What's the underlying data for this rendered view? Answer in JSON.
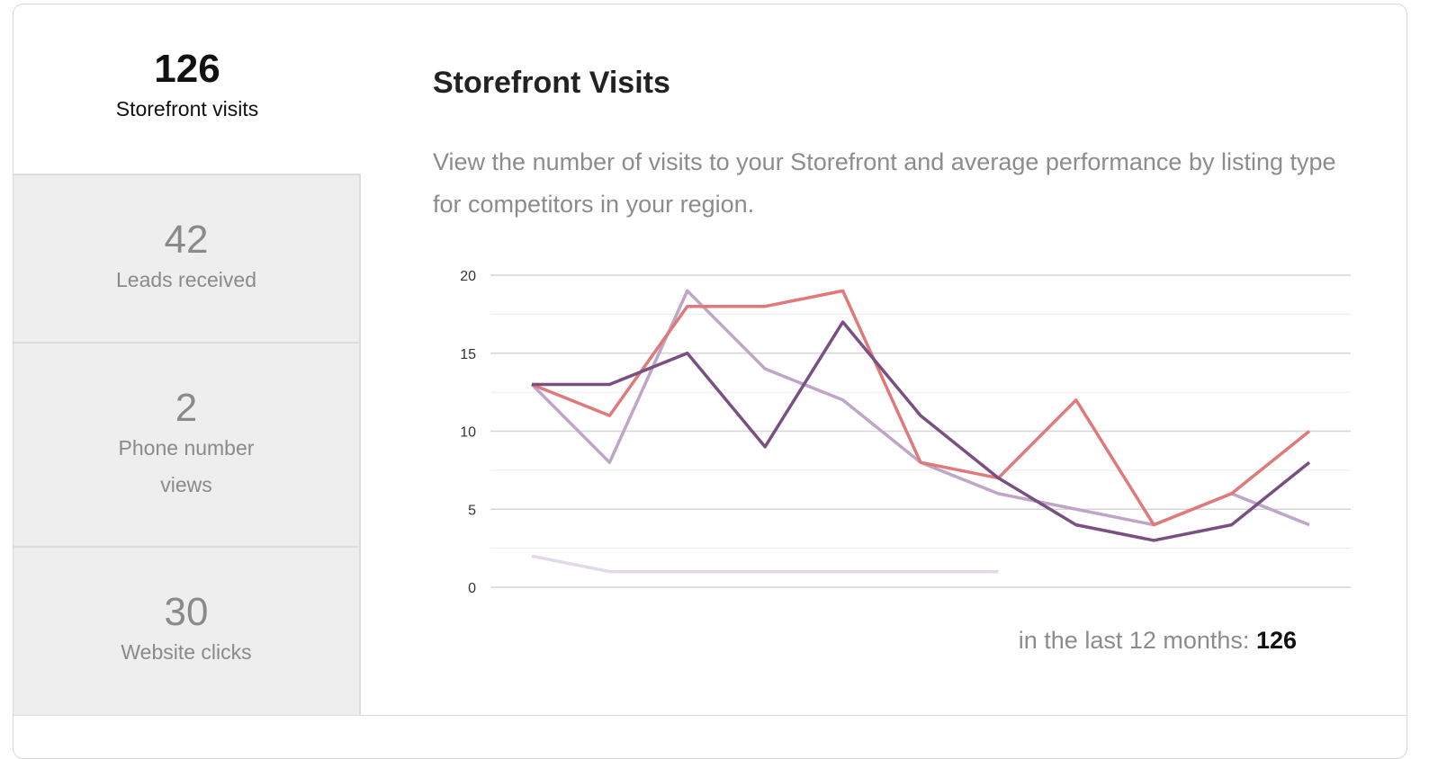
{
  "sidebar": {
    "stats": [
      {
        "value": "126",
        "label": "Storefront visits",
        "active": true
      },
      {
        "value": "42",
        "label": "Leads received",
        "active": false
      },
      {
        "value": "2",
        "label": "Phone number views",
        "active": false
      },
      {
        "value": "30",
        "label": "Website clicks",
        "active": false
      }
    ]
  },
  "main": {
    "title": "Storefront Visits",
    "description": "View the number of visits to your Storefront and average performance by listing type for competitors in your region.",
    "summary_label": "in the last 12 months:",
    "summary_value": "126"
  },
  "chart_data": {
    "type": "line",
    "title": "",
    "xlabel": "",
    "ylabel": "",
    "ylim": [
      0,
      20
    ],
    "yticks": [
      0,
      5,
      10,
      15,
      20
    ],
    "grid": true,
    "legend": "none",
    "x": [
      1,
      2,
      3,
      4,
      5,
      6,
      7,
      8,
      9,
      10,
      11
    ],
    "series": [
      {
        "color": "#e07a7a",
        "values": [
          13,
          11,
          18,
          18,
          19,
          8,
          7,
          12,
          4,
          6,
          10
        ]
      },
      {
        "color": "#bfa6c8",
        "values": [
          13,
          8,
          19,
          14,
          12,
          8,
          6,
          5,
          4,
          6,
          4
        ]
      },
      {
        "color": "#7a4f82",
        "values": [
          13,
          13,
          15,
          9,
          17,
          11,
          7,
          4,
          3,
          4,
          8
        ]
      },
      {
        "color": "#e2d8e6",
        "values": [
          2,
          1,
          1,
          1,
          1,
          1,
          1,
          null,
          null,
          null,
          null
        ]
      }
    ]
  }
}
